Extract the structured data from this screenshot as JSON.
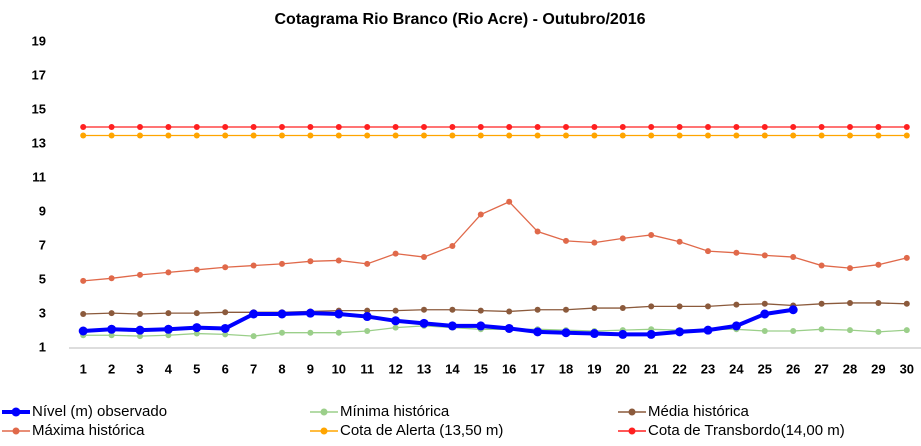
{
  "chart_data": {
    "type": "line",
    "title": "Cotagrama Rio Branco (Rio Acre) - Outubro/2016",
    "categories": [
      "1",
      "2",
      "3",
      "4",
      "5",
      "6",
      "7",
      "8",
      "9",
      "10",
      "11",
      "12",
      "13",
      "14",
      "15",
      "16",
      "17",
      "18",
      "19",
      "20",
      "21",
      "22",
      "23",
      "24",
      "25",
      "26",
      "27",
      "28",
      "29",
      "30"
    ],
    "ylim": [
      1,
      19
    ],
    "yticks": [
      1,
      3,
      5,
      7,
      9,
      11,
      13,
      15,
      17,
      19
    ],
    "grid": false,
    "legend": "bottom",
    "series": [
      {
        "name": "Nível (m) observado",
        "color": "#0000ff",
        "values": [
          2.0,
          2.1,
          2.05,
          2.1,
          2.2,
          2.15,
          3.0,
          3.0,
          3.05,
          3.0,
          2.85,
          2.6,
          2.45,
          2.3,
          2.3,
          2.15,
          1.95,
          1.9,
          1.85,
          1.8,
          1.8,
          1.95,
          2.05,
          2.3,
          3.0,
          3.25,
          null,
          null,
          null,
          null
        ]
      },
      {
        "name": "Mínima histórica",
        "color": "#9bcf8a",
        "values": [
          1.75,
          1.75,
          1.7,
          1.75,
          1.85,
          1.8,
          1.7,
          1.9,
          1.9,
          1.9,
          2.0,
          2.2,
          2.3,
          2.2,
          2.1,
          2.1,
          2.1,
          2.05,
          2.0,
          2.05,
          2.1,
          2.05,
          2.1,
          2.1,
          2.0,
          2.0,
          2.1,
          2.05,
          1.95,
          2.05
        ]
      },
      {
        "name": "Média histórica",
        "color": "#8b5a3c",
        "values": [
          3.0,
          3.05,
          3.0,
          3.05,
          3.05,
          3.1,
          3.1,
          3.1,
          3.15,
          3.2,
          3.2,
          3.2,
          3.25,
          3.25,
          3.2,
          3.15,
          3.25,
          3.25,
          3.35,
          3.35,
          3.45,
          3.45,
          3.45,
          3.55,
          3.6,
          3.5,
          3.6,
          3.65,
          3.65,
          3.6
        ]
      },
      {
        "name": "Máxima histórica",
        "color": "#e0694a",
        "values": [
          4.95,
          5.1,
          5.3,
          5.45,
          5.6,
          5.75,
          5.85,
          5.95,
          6.1,
          6.15,
          5.95,
          6.55,
          6.35,
          7.0,
          8.85,
          9.6,
          7.85,
          7.3,
          7.2,
          7.45,
          7.65,
          7.25,
          6.7,
          6.6,
          6.45,
          6.35,
          5.85,
          5.7,
          5.9,
          6.3
        ]
      },
      {
        "name": "Cota de Alerta (13,50 m)",
        "color": "#ffa500",
        "values": [
          13.5,
          13.5,
          13.5,
          13.5,
          13.5,
          13.5,
          13.5,
          13.5,
          13.5,
          13.5,
          13.5,
          13.5,
          13.5,
          13.5,
          13.5,
          13.5,
          13.5,
          13.5,
          13.5,
          13.5,
          13.5,
          13.5,
          13.5,
          13.5,
          13.5,
          13.5,
          13.5,
          13.5,
          13.5,
          13.5
        ]
      },
      {
        "name": "Cota de Transbordo(14,00 m)",
        "color": "#ff2020",
        "values": [
          14,
          14,
          14,
          14,
          14,
          14,
          14,
          14,
          14,
          14,
          14,
          14,
          14,
          14,
          14,
          14,
          14,
          14,
          14,
          14,
          14,
          14,
          14,
          14,
          14,
          14,
          14,
          14,
          14,
          14
        ]
      }
    ]
  }
}
